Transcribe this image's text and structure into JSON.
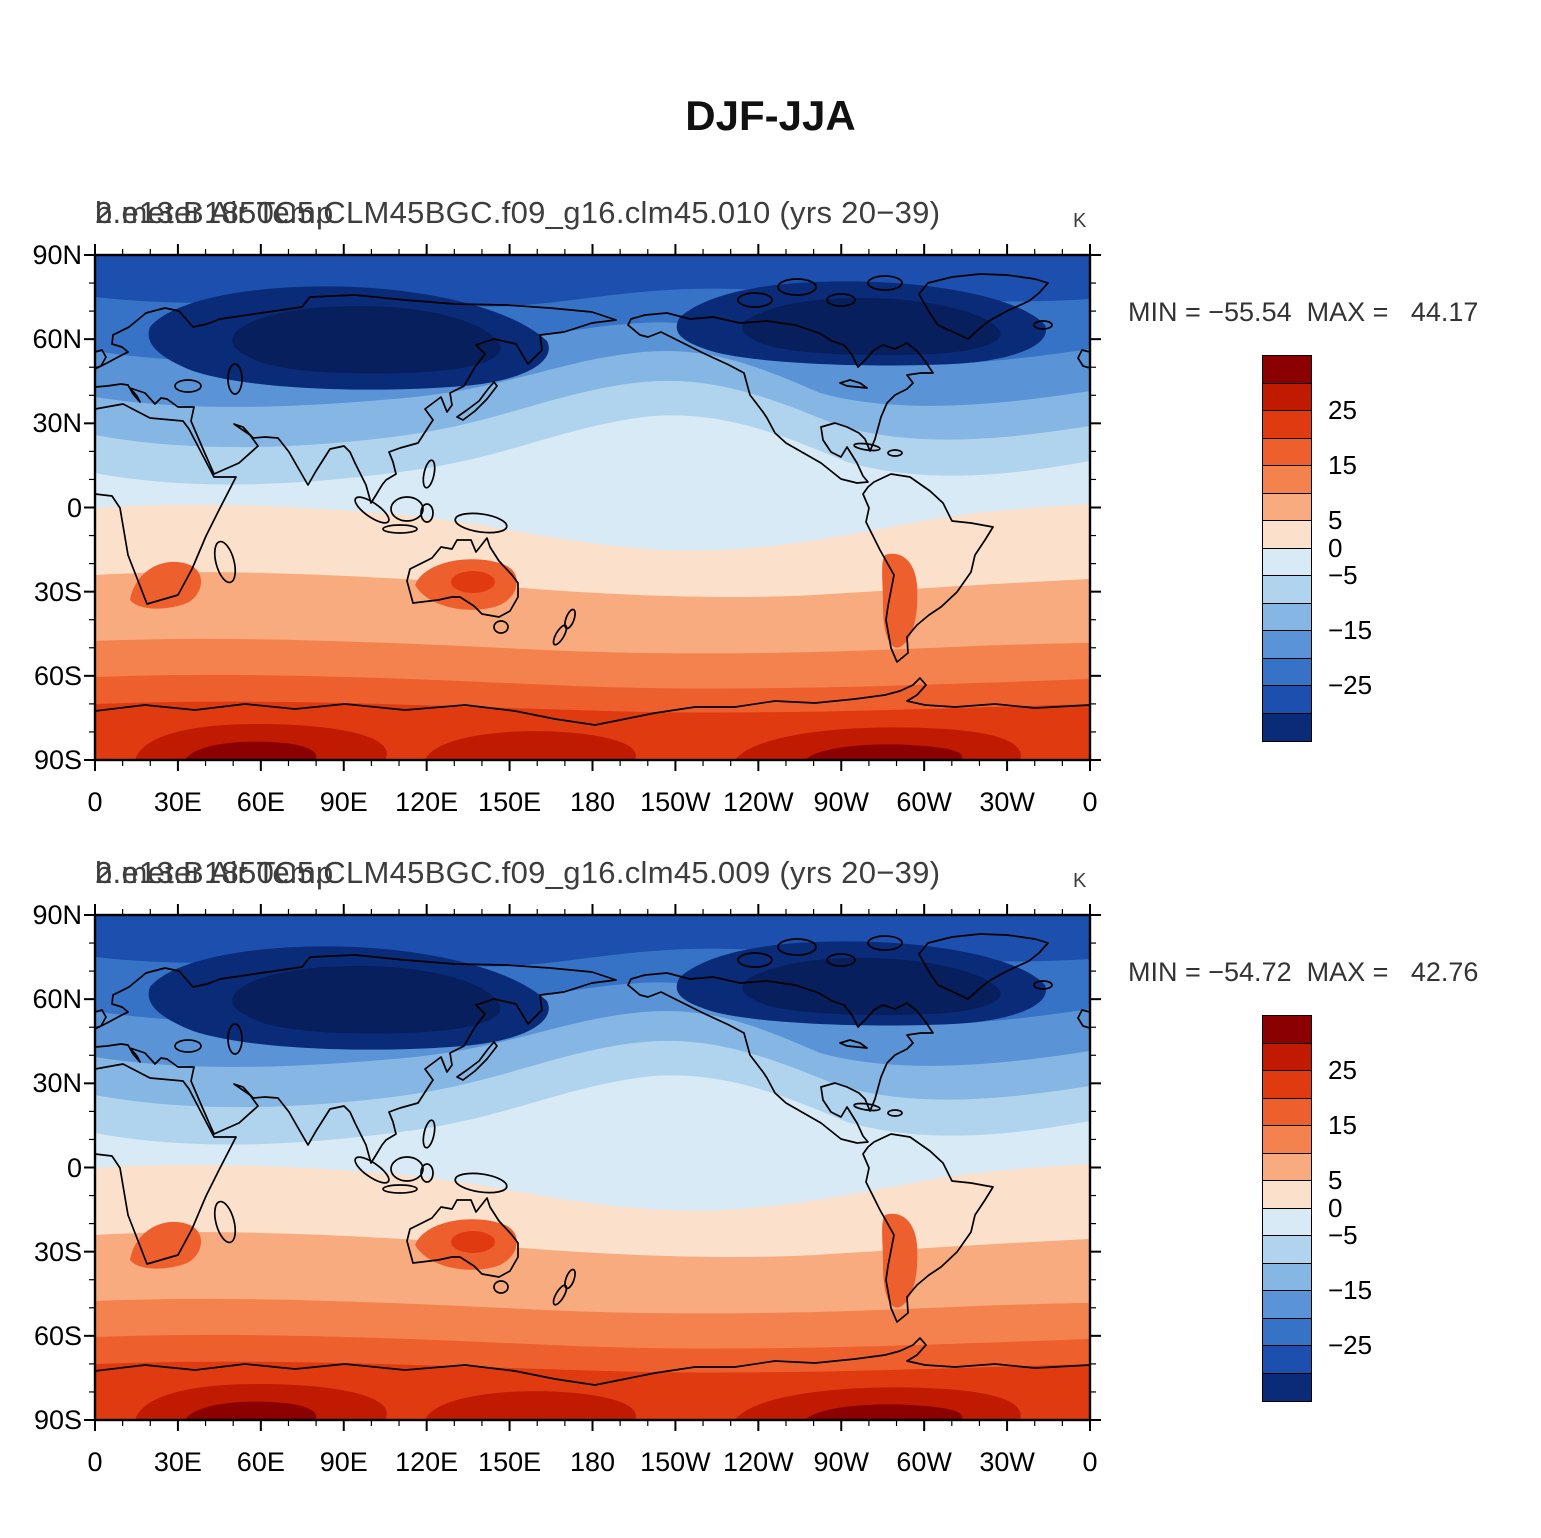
{
  "main_title": "DJF-JJA",
  "panels": [
    {
      "field_title": "2 meter Air Temp",
      "model_title": "b.e13.B1850C5.CLM45BGC.f09_g16.clm45.010 (yrs 20−39)",
      "units": "K",
      "stats": "MIN = −55.54  MAX =   44.17"
    },
    {
      "field_title": "2 meter Air Temp",
      "model_title": "b.e13.B1850C5.CLM45BGC.f09_g16.clm45.009 (yrs 20−39)",
      "units": "K",
      "stats": "MIN = −54.72  MAX =   42.76"
    }
  ],
  "axes": {
    "lat_labels": [
      "90N",
      "60N",
      "30N",
      "0",
      "30S",
      "60S",
      "90S"
    ],
    "lon_labels": [
      "0",
      "30E",
      "60E",
      "90E",
      "120E",
      "150E",
      "180",
      "150W",
      "120W",
      "90W",
      "60W",
      "30W",
      "0"
    ]
  },
  "colorbar": {
    "colors": [
      "#8b0000",
      "#c01a00",
      "#e03a10",
      "#ee5f2e",
      "#f4824f",
      "#f8ab7e",
      "#fbe0cc",
      "#d8eaf6",
      "#b0d3ee",
      "#86b7e4",
      "#5a94d6",
      "#3672c6",
      "#1c4fae",
      "#0a2b78"
    ],
    "labels": [
      {
        "text": "25",
        "boundary": 2
      },
      {
        "text": "15",
        "boundary": 4
      },
      {
        "text": "5",
        "boundary": 6
      },
      {
        "text": "0",
        "boundary": 7
      },
      {
        "text": "−5",
        "boundary": 8
      },
      {
        "text": "−15",
        "boundary": 10
      },
      {
        "text": "−25",
        "boundary": 12
      }
    ]
  },
  "chart_data": [
    {
      "type": "heatmap",
      "subtype": "filled-contour-world-map",
      "title": "b.e13.B1850C5.CLM45BGC.f09_g16.clm45.010 (yrs 20−39)",
      "field": "2 meter Air Temp",
      "season_difference": "DJF-JJA",
      "units": "K",
      "min": -55.54,
      "max": 44.17,
      "contour_levels": [
        -30,
        -25,
        -20,
        -15,
        -10,
        -5,
        0,
        5,
        10,
        15,
        20,
        25,
        30
      ],
      "palette_top_to_bottom": [
        "#8b0000",
        "#c01a00",
        "#e03a10",
        "#ee5f2e",
        "#f4824f",
        "#f8ab7e",
        "#fbe0cc",
        "#d8eaf6",
        "#b0d3ee",
        "#86b7e4",
        "#5a94d6",
        "#3672c6",
        "#1c4fae",
        "#0a2b78"
      ],
      "lon_axis": {
        "range_deg": [
          0,
          360
        ],
        "tick_labels": [
          "0",
          "30E",
          "60E",
          "90E",
          "120E",
          "150E",
          "180",
          "150W",
          "120W",
          "90W",
          "60W",
          "30W",
          "0"
        ]
      },
      "lat_axis": {
        "range_deg": [
          -90,
          90
        ],
        "tick_labels": [
          "90N",
          "60N",
          "30N",
          "0",
          "30S",
          "60S",
          "90S"
        ]
      },
      "pattern_summary": "Strongly negative (dark blue, below −30 K) over Siberia and northern Canada, negative over all NH mid/high latitudes, near zero along the tropics with a pale-blue tongue crossing the equator in the central Pacific, positive (salmon to red) throughout the SH, exceeding +25 K over Antarctica."
    },
    {
      "type": "heatmap",
      "subtype": "filled-contour-world-map",
      "title": "b.e13.B1850C5.CLM45BGC.f09_g16.clm45.009 (yrs 20−39)",
      "field": "2 meter Air Temp",
      "season_difference": "DJF-JJA",
      "units": "K",
      "min": -54.72,
      "max": 42.76,
      "contour_levels": [
        -30,
        -25,
        -20,
        -15,
        -10,
        -5,
        0,
        5,
        10,
        15,
        20,
        25,
        30
      ],
      "palette_top_to_bottom": [
        "#8b0000",
        "#c01a00",
        "#e03a10",
        "#ee5f2e",
        "#f4824f",
        "#f8ab7e",
        "#fbe0cc",
        "#d8eaf6",
        "#b0d3ee",
        "#86b7e4",
        "#5a94d6",
        "#3672c6",
        "#1c4fae",
        "#0a2b78"
      ],
      "lon_axis": {
        "range_deg": [
          0,
          360
        ],
        "tick_labels": [
          "0",
          "30E",
          "60E",
          "90E",
          "120E",
          "150E",
          "180",
          "150W",
          "120W",
          "90W",
          "60W",
          "30W",
          "0"
        ]
      },
      "lat_axis": {
        "range_deg": [
          -90,
          90
        ],
        "tick_labels": [
          "90N",
          "60N",
          "30N",
          "0",
          "30S",
          "60S",
          "90S"
        ]
      },
      "pattern_summary": "Nearly identical pattern to ensemble member .010: strong NH cooling signal (DJF minus JJA) over continents, warm SH with maximum seasonal difference over Antarctica."
    }
  ]
}
